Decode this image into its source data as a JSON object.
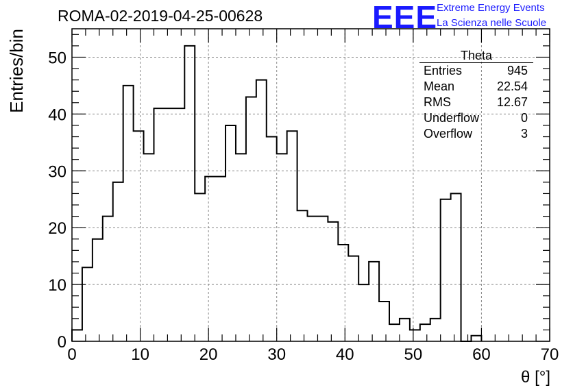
{
  "chart_data": {
    "type": "bar",
    "style": "step-histogram",
    "title": "ROMA-02-2019-04-25-00628",
    "xlabel": "θ [°]",
    "ylabel": "Entries/bin",
    "xlim": [
      0,
      70
    ],
    "ylim": [
      0,
      55
    ],
    "xticks": [
      0,
      10,
      20,
      30,
      40,
      50,
      60,
      70
    ],
    "yticks": [
      0,
      10,
      20,
      30,
      40,
      50
    ],
    "grid": true,
    "bin_width": 1.5,
    "x_start": 0,
    "values": [
      2,
      13,
      18,
      22,
      28,
      45,
      37,
      33,
      41,
      41,
      41,
      52,
      26,
      29,
      29,
      38,
      33,
      43,
      46,
      36,
      33,
      37,
      23,
      22,
      22,
      21,
      17,
      15,
      10,
      14,
      7,
      3,
      4,
      2,
      3,
      4,
      25,
      26,
      0,
      1
    ],
    "line_color": "#000000"
  },
  "stats_box": {
    "title": "Theta",
    "rows": [
      {
        "label": "Entries",
        "value": "945"
      },
      {
        "label": "Mean",
        "value": "22.54"
      },
      {
        "label": "RMS",
        "value": "12.67"
      },
      {
        "label": "Underflow",
        "value": "0"
      },
      {
        "label": "Overflow",
        "value": "3"
      }
    ]
  },
  "logo": {
    "text": "EEE",
    "line1": "Extreme Energy Events",
    "line2": "La Scienza nelle Scuole",
    "color": "#1a1aff"
  }
}
